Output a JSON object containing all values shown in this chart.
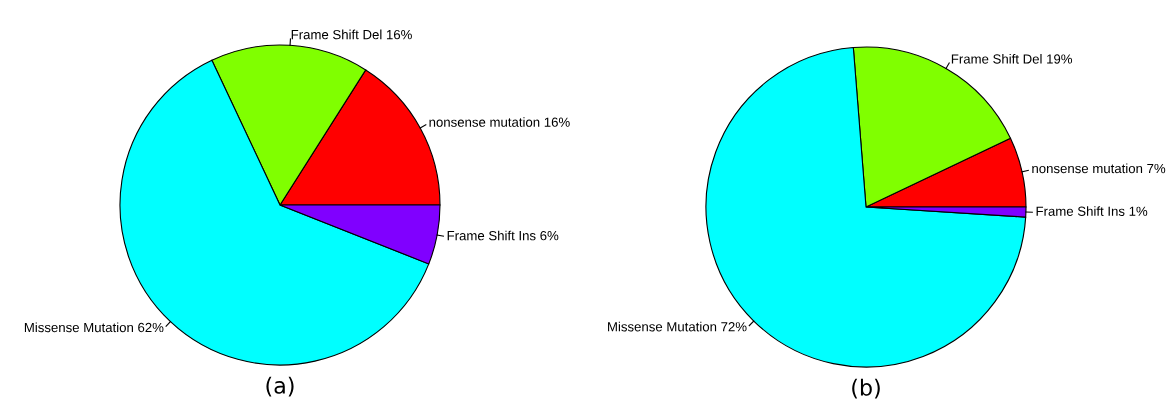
{
  "chart_data": [
    {
      "type": "pie",
      "title": "(a)",
      "categories": [
        "nonsense mutation",
        "Frame Shift Del",
        "Missense Mutation",
        "Frame Shift Ins"
      ],
      "values": [
        16,
        16,
        62,
        6
      ],
      "value_labels": [
        "16%",
        "16%",
        "62%",
        "6%"
      ],
      "colors": [
        "#ff0000",
        "#80ff00",
        "#00ffff",
        "#8000ff"
      ]
    },
    {
      "type": "pie",
      "title": "(b)",
      "categories": [
        "nonsense mutation",
        "Frame Shift Del",
        "Missense Mutation",
        "Frame Shift Ins"
      ],
      "values": [
        7,
        19,
        72,
        1
      ],
      "value_labels": [
        "7%",
        "19%",
        "72%",
        "1%"
      ],
      "colors": [
        "#ff0000",
        "#80ff00",
        "#00ffff",
        "#8000ff"
      ]
    }
  ]
}
